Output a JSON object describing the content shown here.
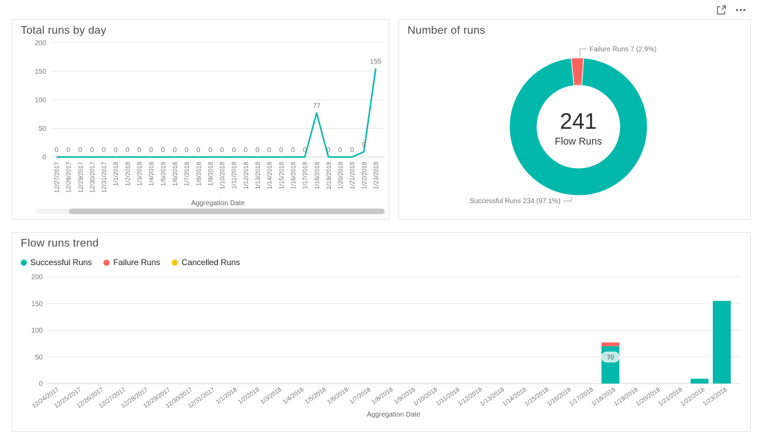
{
  "header": {
    "icons": [
      {
        "name": "focus-mode-icon"
      },
      {
        "name": "more-options-icon"
      }
    ]
  },
  "colors": {
    "accent_teal": "#01B8AA",
    "accent_red": "#FD625E",
    "accent_yellow": "#F2C80F",
    "title_text": "#4A4A4A",
    "axis_text": "#777777",
    "legend_text": "#212121",
    "gridline": "#E8E8E8",
    "axis_line": "#D6D6D6",
    "card_border": "#E6E6E6",
    "callout_line": "#A6A6A6",
    "center_text": "#2B2B2B",
    "bar_label_bg": "#D8F0ED",
    "bar_label_text": "#3F4E4D"
  },
  "cards": {
    "total_runs": {
      "title": "Total runs by day",
      "x_axis_title": "Aggregation Date"
    },
    "number_of_runs": {
      "title": "Number of runs"
    },
    "flow_runs_trend": {
      "title": "Flow runs trend",
      "x_axis_title": "Aggregation Date"
    }
  },
  "chart_data": [
    {
      "type": "line",
      "title": "Total runs by day",
      "xlabel": "Aggregation Date",
      "ylabel": "",
      "ylim": [
        0,
        200
      ],
      "yticks": [
        0,
        50,
        100,
        150,
        200
      ],
      "grid": true,
      "data_labels": true,
      "line_color": "#01B8AA",
      "has_horizontal_scrollbar": true,
      "categories": [
        "12/27/2017",
        "12/28/2017",
        "12/29/2017",
        "12/30/2017",
        "12/31/2017",
        "1/1/2018",
        "1/2/2018",
        "1/3/2018",
        "1/4/2018",
        "1/5/2018",
        "1/6/2018",
        "1/7/2018",
        "1/8/2018",
        "1/9/2018",
        "1/10/2018",
        "1/11/2018",
        "1/12/2018",
        "1/13/2018",
        "1/14/2018",
        "1/15/2018",
        "1/16/2018",
        "1/17/2018",
        "1/18/2018",
        "1/19/2018",
        "1/20/2018",
        "1/21/2018",
        "1/22/2018",
        "1/23/2018"
      ],
      "values": [
        0,
        0,
        0,
        0,
        0,
        0,
        0,
        0,
        0,
        0,
        0,
        0,
        0,
        0,
        0,
        0,
        0,
        0,
        0,
        0,
        0,
        0,
        77,
        0,
        0,
        0,
        9,
        155
      ]
    },
    {
      "type": "pie",
      "subtype": "donut",
      "title": "Number of runs",
      "center_value": "241",
      "center_label": "Flow Runs",
      "total": 241,
      "slices": [
        {
          "name": "Successful Runs",
          "value": 234,
          "pct": 97.1,
          "color": "#01B8AA",
          "callout": "Successful Runs 234 (97.1%)"
        },
        {
          "name": "Failure Runs",
          "value": 7,
          "pct": 2.9,
          "color": "#FD625E",
          "callout": "Failure Runs 7 (2.9%)"
        }
      ]
    },
    {
      "type": "bar",
      "stacked": true,
      "title": "Flow runs trend",
      "xlabel": "Aggregation Date",
      "ylim": [
        0,
        200
      ],
      "yticks": [
        0,
        50,
        100,
        150,
        200
      ],
      "grid": true,
      "legend_position": "top-left",
      "categories": [
        "12/24/2017",
        "12/25/2017",
        "12/26/2017",
        "12/27/2017",
        "12/28/2017",
        "12/29/2017",
        "12/30/2017",
        "12/31/2017",
        "1/1/2018",
        "1/2/2018",
        "1/3/2018",
        "1/4/2018",
        "1/5/2018",
        "1/6/2018",
        "1/7/2018",
        "1/8/2018",
        "1/9/2018",
        "1/10/2018",
        "1/11/2018",
        "1/12/2018",
        "1/13/2018",
        "1/14/2018",
        "1/15/2018",
        "1/16/2018",
        "1/17/2018",
        "1/18/2018",
        "1/19/2018",
        "1/20/2018",
        "1/21/2018",
        "1/22/2018",
        "1/23/2018"
      ],
      "series": [
        {
          "name": "Successful Runs",
          "color": "#01B8AA",
          "values": [
            0,
            0,
            0,
            0,
            0,
            0,
            0,
            0,
            0,
            0,
            0,
            0,
            0,
            0,
            0,
            0,
            0,
            0,
            0,
            0,
            0,
            0,
            0,
            0,
            0,
            70,
            0,
            0,
            0,
            9,
            155
          ]
        },
        {
          "name": "Failure Runs",
          "color": "#FD625E",
          "values": [
            0,
            0,
            0,
            0,
            0,
            0,
            0,
            0,
            0,
            0,
            0,
            0,
            0,
            0,
            0,
            0,
            0,
            0,
            0,
            0,
            0,
            0,
            0,
            0,
            0,
            7,
            0,
            0,
            0,
            0,
            0
          ]
        },
        {
          "name": "Cancelled Runs",
          "color": "#F2C80F",
          "values": [
            0,
            0,
            0,
            0,
            0,
            0,
            0,
            0,
            0,
            0,
            0,
            0,
            0,
            0,
            0,
            0,
            0,
            0,
            0,
            0,
            0,
            0,
            0,
            0,
            0,
            0,
            0,
            0,
            0,
            0,
            0
          ]
        }
      ],
      "visible_bar_labels": [
        {
          "category": "1/18/2018",
          "series": "Successful Runs",
          "text": "70"
        }
      ]
    }
  ]
}
